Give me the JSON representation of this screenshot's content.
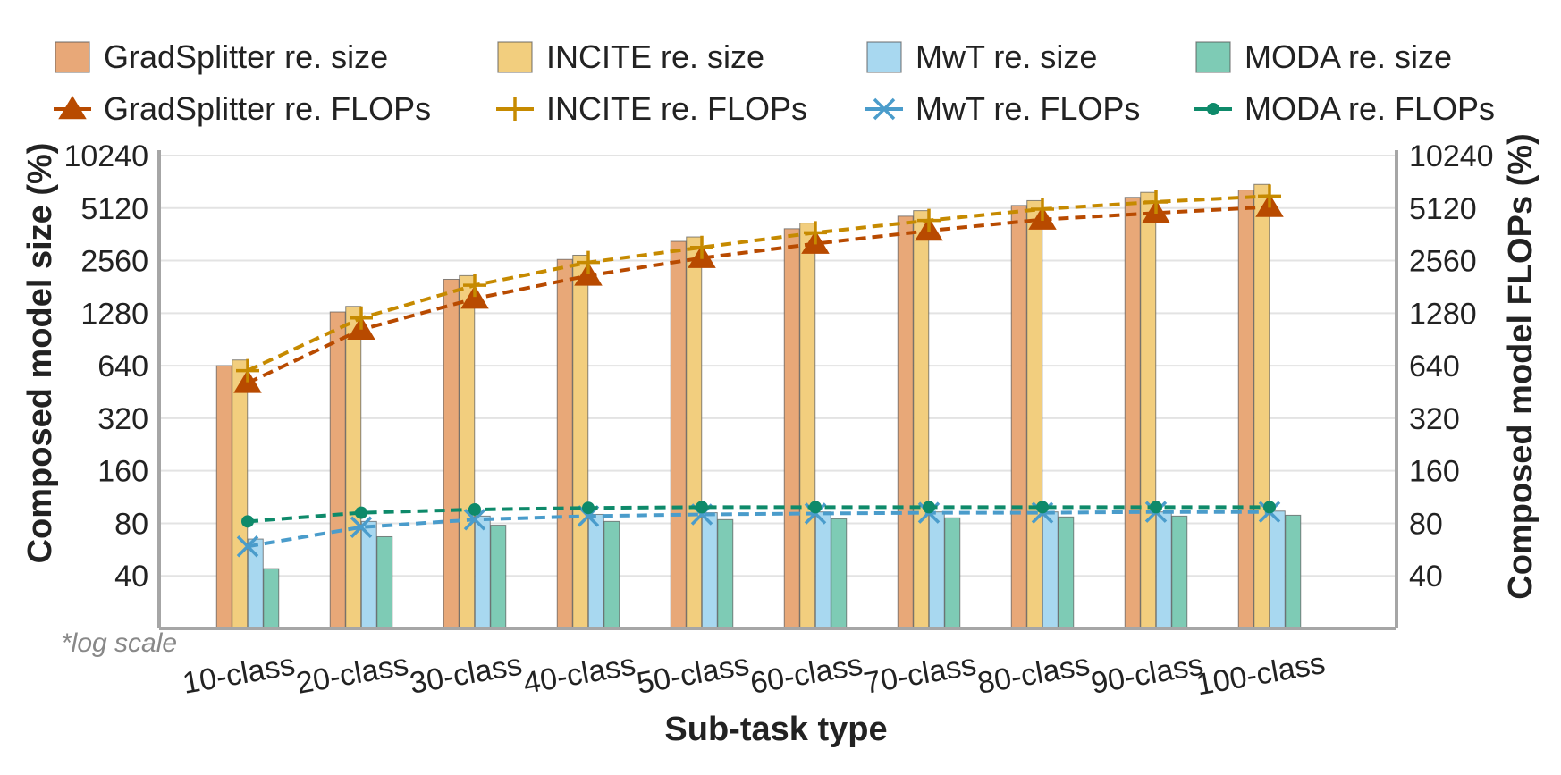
{
  "chart_data": {
    "type": "bar",
    "scale": "log2",
    "categories": [
      "10-class",
      "20-class",
      "30-class",
      "40-class",
      "50-class",
      "60-class",
      "70-class",
      "80-class",
      "90-class",
      "100-class"
    ],
    "xlabel": "Sub-task type",
    "ylabel_left": "Composed model size (%)",
    "ylabel_right": "Composed model FLOPs (%)",
    "yticks": [
      40,
      80,
      160,
      320,
      640,
      1280,
      2560,
      5120,
      10240
    ],
    "ylim": [
      20,
      10240
    ],
    "grid": true,
    "legend_position": "top",
    "note": "*log scale",
    "bar_series": [
      {
        "name": "GradSplitter re. size",
        "color": "#E8A878",
        "values": [
          640,
          1300,
          2000,
          2600,
          3300,
          3900,
          4600,
          5300,
          5900,
          6500
        ]
      },
      {
        "name": "INCITE re. size",
        "color": "#F2CE7E",
        "values": [
          690,
          1400,
          2100,
          2750,
          3500,
          4200,
          4950,
          5650,
          6300,
          7000
        ]
      },
      {
        "name": "MwT re. size",
        "color": "#A8D8F0",
        "values": [
          65,
          82,
          88,
          90,
          92,
          93,
          93,
          93,
          93,
          94
        ]
      },
      {
        "name": "MODA re. size",
        "color": "#7ECBB5",
        "values": [
          44,
          67,
          78,
          82,
          84,
          85,
          86,
          87,
          88,
          89
        ]
      }
    ],
    "line_series": [
      {
        "name": "GradSplitter re. FLOPs",
        "color": "#B84A00",
        "marker": "triangle",
        "values": [
          510,
          1030,
          1550,
          2100,
          2650,
          3200,
          3800,
          4400,
          4800,
          5200
        ]
      },
      {
        "name": "INCITE re. FLOPs",
        "color": "#C68A00",
        "marker": "plus",
        "values": [
          600,
          1200,
          1850,
          2500,
          3050,
          3700,
          4350,
          5050,
          5550,
          6000
        ]
      },
      {
        "name": "MwT re. FLOPs",
        "color": "#4A9CCB",
        "marker": "x",
        "values": [
          59,
          76,
          84,
          88,
          90,
          91,
          92,
          92,
          93,
          93
        ]
      },
      {
        "name": "MODA re. FLOPs",
        "color": "#0E8A6A",
        "marker": "dot",
        "values": [
          82,
          92,
          96,
          98,
          99,
          99,
          99,
          99,
          99,
          99
        ]
      }
    ]
  }
}
